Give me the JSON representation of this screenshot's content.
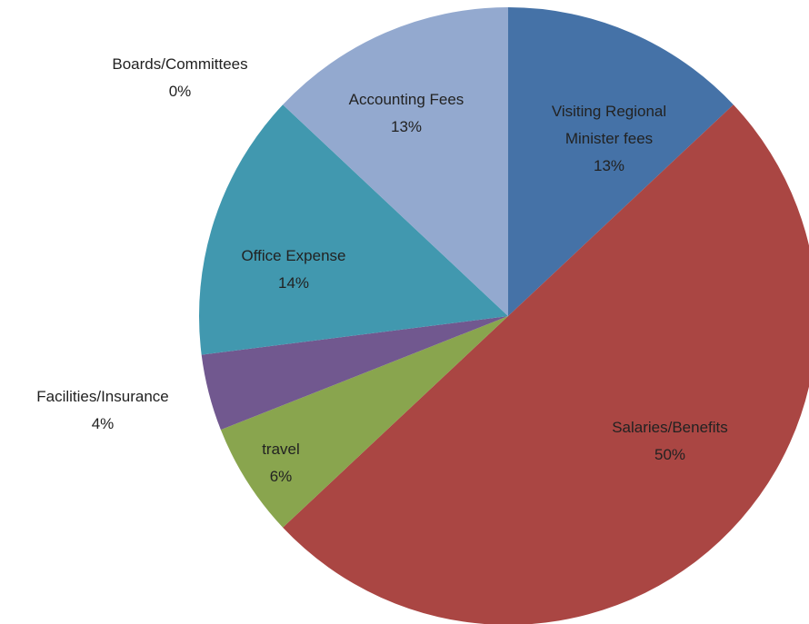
{
  "chart_data": {
    "type": "pie",
    "categories": [
      "Visiting Regional Minister fees",
      "Salaries/Benefits",
      "travel",
      "Facilities/Insurance",
      "Office Expense",
      "Accounting Fees",
      "Boards/Committees"
    ],
    "values": [
      13,
      50,
      6,
      4,
      14,
      13,
      0
    ],
    "value_labels": [
      "13%",
      "50%",
      "6%",
      "4%",
      "14%",
      "13%",
      "0%"
    ],
    "colors": [
      "#4572a7",
      "#aa4643",
      "#89a54e",
      "#71588f",
      "#4198af",
      "#93a9cf",
      "#db843d"
    ]
  }
}
